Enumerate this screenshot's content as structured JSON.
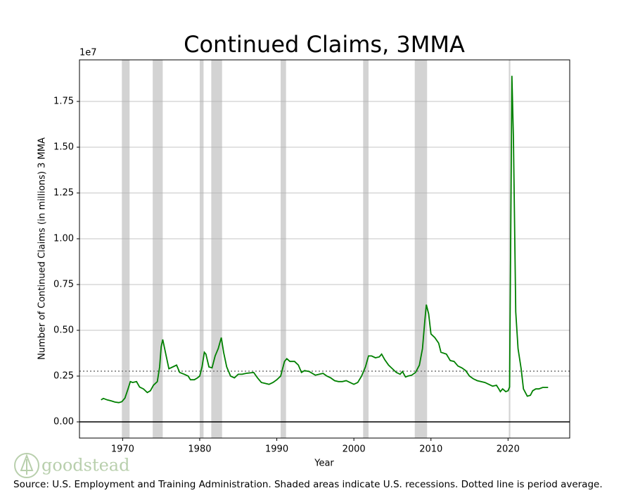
{
  "chart_data": {
    "type": "line",
    "title": "Continued Claims, 3MMA",
    "x_label": "Year",
    "y_label": "Number of Continued Claims (in millions) 3 MMA",
    "y_offset_label": "1e7",
    "source": "Source: U.S. Employment and Training Administration. Shaded areas indicate U.S. recessions. Dotted line is period average.",
    "logo": "goodstead",
    "xlim": [
      1964.4,
      2028.0
    ],
    "ylim": [
      -885000,
      19770000
    ],
    "xticks": [
      1970,
      1980,
      1990,
      2000,
      2010,
      2020
    ],
    "yticks": [
      {
        "value": 0,
        "label": "0.00"
      },
      {
        "value": 2500000,
        "label": "0.25"
      },
      {
        "value": 5000000,
        "label": "0.50"
      },
      {
        "value": 7500000,
        "label": "0.75"
      },
      {
        "value": 10000000,
        "label": "1.00"
      },
      {
        "value": 12500000,
        "label": "1.25"
      },
      {
        "value": 15000000,
        "label": "1.50"
      },
      {
        "value": 17500000,
        "label": "1.75"
      }
    ],
    "grid": true,
    "average": 2770000,
    "recession_color": "#d3d3d3",
    "recessions": [
      [
        1969.9,
        1970.9
      ],
      [
        1973.9,
        1975.2
      ],
      [
        1980.0,
        1980.5
      ],
      [
        1981.5,
        1982.9
      ],
      [
        1990.5,
        1991.2
      ],
      [
        2001.2,
        2001.9
      ],
      [
        2007.9,
        2009.5
      ],
      [
        2020.1,
        2020.3
      ]
    ],
    "series": [
      {
        "color": "#008000",
        "x": [
          1967.2,
          1967.5,
          1968,
          1968.5,
          1969,
          1969.5,
          1969.9,
          1970.3,
          1970.7,
          1971,
          1971.3,
          1971.8,
          1972.2,
          1972.7,
          1973.2,
          1973.6,
          1974,
          1974.5,
          1974.8,
          1975.0,
          1975.2,
          1975.6,
          1976,
          1976.5,
          1977,
          1977.4,
          1978,
          1978.5,
          1978.8,
          1979.3,
          1979.7,
          1980.0,
          1980.3,
          1980.6,
          1980.8,
          1981.2,
          1981.6,
          1982,
          1982.4,
          1982.8,
          1983.1,
          1983.5,
          1984,
          1984.5,
          1985,
          1985.5,
          1986,
          1987,
          1987.5,
          1988,
          1988.5,
          1989,
          1989.5,
          1990,
          1990.5,
          1991,
          1991.3,
          1991.7,
          1992.3,
          1992.8,
          1993.2,
          1993.6,
          1994.2,
          1995,
          1995.5,
          1996,
          1996.5,
          1997,
          1997.5,
          1998,
          1998.5,
          1999,
          1999.5,
          2000,
          2000.5,
          2001,
          2001.5,
          2001.9,
          2002.3,
          2002.8,
          2003.3,
          2003.6,
          2004,
          2004.5,
          2005,
          2005.5,
          2006,
          2006.3,
          2006.7,
          2007,
          2007.5,
          2008,
          2008.5,
          2008.9,
          2009.2,
          2009.4,
          2009.7,
          2010,
          2010.5,
          2011,
          2011.3,
          2012,
          2012.5,
          2013,
          2013.5,
          2014,
          2014.5,
          2015,
          2015.5,
          2016,
          2017,
          2017.5,
          2018,
          2018.5,
          2018.8,
          2019,
          2019.3,
          2019.7,
          2020,
          2020.2,
          2020.4,
          2020.5,
          2020.7,
          2021,
          2021.3,
          2021.7,
          2022,
          2022.5,
          2022.9,
          2023.2,
          2023.6,
          2024,
          2024.5,
          2025.2
        ],
        "values": [
          1200000,
          1280000,
          1200000,
          1150000,
          1080000,
          1050000,
          1100000,
          1300000,
          1800000,
          2200000,
          2150000,
          2200000,
          1900000,
          1800000,
          1600000,
          1700000,
          2000000,
          2200000,
          3000000,
          4100000,
          4500000,
          3700000,
          2900000,
          3000000,
          3100000,
          2700000,
          2600000,
          2500000,
          2300000,
          2300000,
          2400000,
          2500000,
          3000000,
          3800000,
          3700000,
          3000000,
          2950000,
          3600000,
          4000000,
          4600000,
          3800000,
          3000000,
          2500000,
          2400000,
          2600000,
          2600000,
          2650000,
          2700000,
          2400000,
          2150000,
          2100000,
          2050000,
          2150000,
          2300000,
          2500000,
          3300000,
          3450000,
          3300000,
          3300000,
          3100000,
          2700000,
          2800000,
          2750000,
          2550000,
          2600000,
          2650000,
          2500000,
          2400000,
          2250000,
          2200000,
          2200000,
          2250000,
          2150000,
          2050000,
          2150000,
          2500000,
          3000000,
          3600000,
          3600000,
          3500000,
          3550000,
          3700000,
          3400000,
          3100000,
          2900000,
          2700000,
          2600000,
          2750000,
          2450000,
          2500000,
          2550000,
          2700000,
          3100000,
          4000000,
          5500000,
          6400000,
          5900000,
          4800000,
          4600000,
          4300000,
          3800000,
          3700000,
          3350000,
          3300000,
          3050000,
          2950000,
          2800000,
          2500000,
          2350000,
          2250000,
          2150000,
          2050000,
          1950000,
          2000000,
          1800000,
          1650000,
          1800000,
          1650000,
          1700000,
          1900000,
          13000000,
          18900000,
          15500000,
          6000000,
          4000000,
          2900000,
          1800000,
          1400000,
          1450000,
          1700000,
          1800000,
          1800000,
          1880000,
          1880000
        ]
      }
    ]
  }
}
